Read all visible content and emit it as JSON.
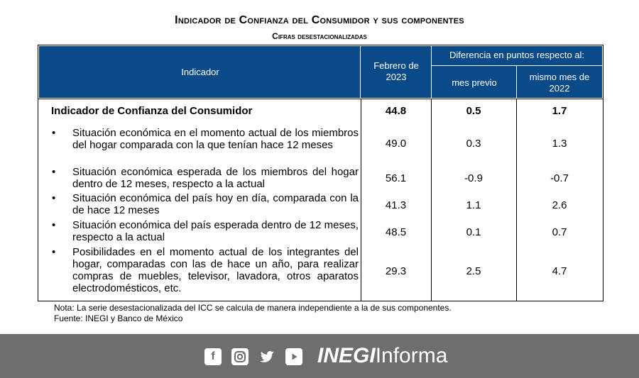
{
  "title": "Indicador de Confianza del Consumidor y sus componentes",
  "subtitle": "Cifras desestacionalizadas",
  "table": {
    "headers": {
      "indicador": "Indicador",
      "period": "Febrero de 2023",
      "diff_group": "Diferencia en puntos respecto al:",
      "prev_month": "mes previo",
      "same_month": "mismo mes de 2022"
    },
    "main_row": {
      "label": "Indicador de Confianza del Consumidor",
      "value": "44.8",
      "prev": "0.5",
      "same": "1.7"
    },
    "rows": [
      {
        "label": "Situación económica en el momento actual de los miembros del hogar comparada con la que tenían hace 12 meses",
        "value": "49.0",
        "prev": "0.3",
        "same": "1.3"
      },
      {
        "label": "Situación económica esperada de los miembros del hogar dentro de 12 meses, respecto a la actual",
        "value": "56.1",
        "prev": "-0.9",
        "same": "-0.7"
      },
      {
        "label": "Situación económica del país hoy en día, comparada con la de hace 12 meses",
        "value": "41.3",
        "prev": "1.1",
        "same": "2.6"
      },
      {
        "label": "Situación económica del país esperada dentro de 12 meses, respecto a la actual",
        "value": "48.5",
        "prev": "0.1",
        "same": "0.7"
      },
      {
        "label": "Posibilidades en el momento actual de los integrantes del hogar, comparadas con las de hace un año, para realizar compras de muebles, televisor, lavadora, otros aparatos electrodomésticos, etc.",
        "value": "29.3",
        "prev": "2.5",
        "same": "4.7"
      }
    ],
    "bullet": "•"
  },
  "notes": {
    "nota": "Nota: La serie desestacionalizada del ICC se calcula de manera independiente a la de sus componentes.",
    "fuente": "Fuente: INEGI y Banco de México"
  },
  "footer": {
    "brand_bold": "INEGI",
    "brand_regular": "Informa",
    "icons": [
      "facebook-icon",
      "instagram-icon",
      "twitter-icon",
      "youtube-icon"
    ],
    "background": "#6d6e70"
  },
  "colors": {
    "header_bg": "#0b4a88"
  }
}
